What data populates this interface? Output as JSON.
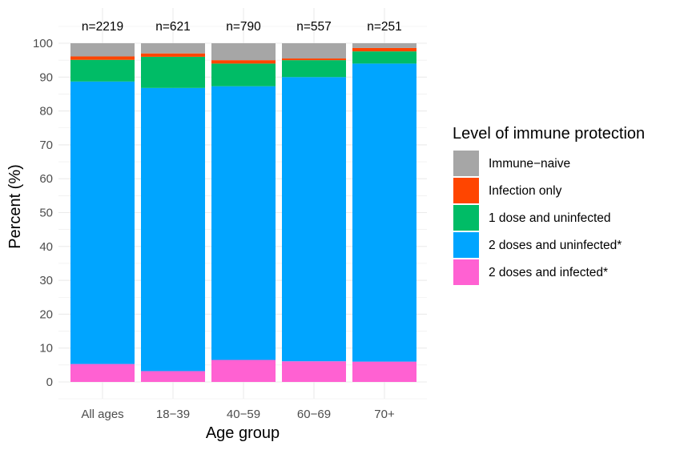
{
  "chart_data": {
    "type": "bar",
    "stacked": true,
    "categories": [
      "All ages",
      "18−39",
      "40−59",
      "60−69",
      "70+"
    ],
    "annotations": [
      "n=2219",
      "n=621",
      "n=790",
      "n=557",
      "n=251"
    ],
    "xlabel": "Age group",
    "ylabel": "Percent (%)",
    "ylim": [
      0,
      100
    ],
    "yticks": [
      "0",
      "10",
      "20",
      "30",
      "40",
      "50",
      "60",
      "70",
      "80",
      "90",
      "100"
    ],
    "grid": true,
    "legend": {
      "title": "Level of immune protection",
      "position": "right",
      "entries": [
        "Immune−naive",
        "Infection only",
        "1 dose and uninfected",
        "2 doses and uninfected*",
        "2 doses and infected*"
      ]
    },
    "series": [
      {
        "name": "2 doses and infected*",
        "color": "#ff61d2",
        "values": [
          5.3,
          3.2,
          6.5,
          6.1,
          6.0
        ]
      },
      {
        "name": "2 doses and uninfected*",
        "color": "#00a5ff",
        "values": [
          83.4,
          83.6,
          80.8,
          83.9,
          88.0
        ]
      },
      {
        "name": "1 dose and uninfected",
        "color": "#00bc66",
        "values": [
          6.4,
          9.2,
          6.7,
          5.0,
          3.6
        ]
      },
      {
        "name": "Infection only",
        "color": "#ff4500",
        "values": [
          1.0,
          1.0,
          1.0,
          0.5,
          1.0
        ]
      },
      {
        "name": "Immune−naive",
        "color": "#a6a6a6",
        "values": [
          3.9,
          3.0,
          5.0,
          4.5,
          1.4
        ]
      }
    ]
  }
}
